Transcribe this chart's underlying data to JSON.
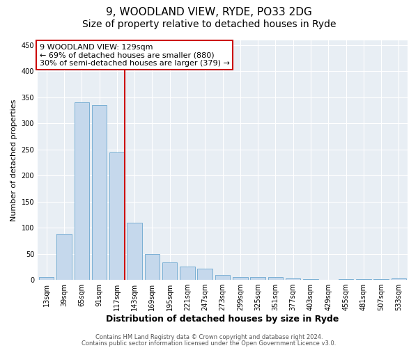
{
  "title": "9, WOODLAND VIEW, RYDE, PO33 2DG",
  "subtitle": "Size of property relative to detached houses in Ryde",
  "xlabel": "Distribution of detached houses by size in Ryde",
  "ylabel": "Number of detached properties",
  "bar_labels": [
    "13sqm",
    "39sqm",
    "65sqm",
    "91sqm",
    "117sqm",
    "143sqm",
    "169sqm",
    "195sqm",
    "221sqm",
    "247sqm",
    "273sqm",
    "299sqm",
    "325sqm",
    "351sqm",
    "377sqm",
    "403sqm",
    "429sqm",
    "455sqm",
    "481sqm",
    "507sqm",
    "533sqm"
  ],
  "bar_values": [
    6,
    88,
    340,
    335,
    245,
    110,
    49,
    33,
    25,
    21,
    10,
    6,
    5,
    5,
    3,
    2,
    0,
    2,
    1,
    1,
    3
  ],
  "bar_color": "#c5d8ec",
  "bar_edge_color": "#7aafd4",
  "marker_label": "9 WOODLAND VIEW: 129sqm",
  "annotation_line1": "← 69% of detached houses are smaller (880)",
  "annotation_line2": "30% of semi-detached houses are larger (379) →",
  "vline_color": "#cc0000",
  "annotation_box_edgecolor": "#cc0000",
  "footer_line1": "Contains HM Land Registry data © Crown copyright and database right 2024.",
  "footer_line2": "Contains public sector information licensed under the Open Government Licence v3.0.",
  "plot_bg_color": "#e8eef4",
  "ylim": [
    0,
    460
  ],
  "yticks": [
    0,
    50,
    100,
    150,
    200,
    250,
    300,
    350,
    400,
    450
  ],
  "title_fontsize": 11,
  "subtitle_fontsize": 10,
  "tick_fontsize": 7,
  "ylabel_fontsize": 8,
  "xlabel_fontsize": 9
}
